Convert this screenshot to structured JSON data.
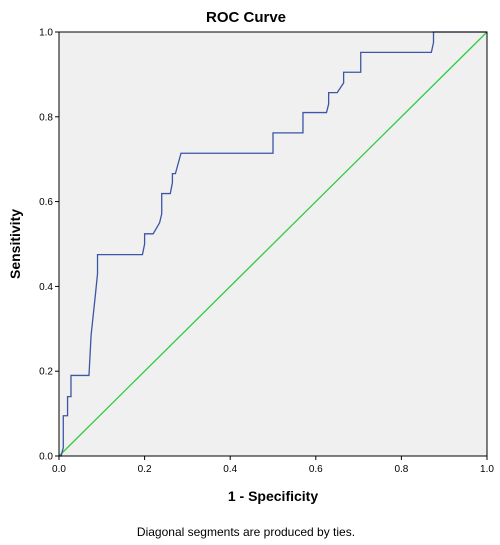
{
  "chart_data": {
    "type": "line",
    "title": "ROC Curve",
    "xlabel": "1 - Specificity",
    "ylabel": "Sensitivity",
    "xlim": [
      0,
      1
    ],
    "ylim": [
      0,
      1
    ],
    "x_ticks": [
      "0.0",
      "0.2",
      "0.4",
      "0.6",
      "0.8",
      "1.0"
    ],
    "y_ticks": [
      "0.0",
      "0.2",
      "0.4",
      "0.6",
      "0.8",
      "1.0"
    ],
    "grid": false,
    "footnote": "Diagonal segments are produced by ties.",
    "colors": {
      "plot_background": "#f0f0f0",
      "roc_curve": "#3d55a5",
      "reference_line": "#2ecc40",
      "axis": "#000000"
    },
    "series": [
      {
        "x": [
          0.0,
          0.005,
          0.01,
          0.01,
          0.02,
          0.02,
          0.028,
          0.028,
          0.035,
          0.035,
          0.07,
          0.075,
          0.085,
          0.09,
          0.09,
          0.195,
          0.2,
          0.2,
          0.22,
          0.235,
          0.24,
          0.24,
          0.26,
          0.265,
          0.265,
          0.272,
          0.285,
          0.5,
          0.5,
          0.57,
          0.57,
          0.625,
          0.63,
          0.63,
          0.65,
          0.665,
          0.665,
          0.705,
          0.705,
          0.87,
          0.875,
          0.875,
          1.0
        ],
        "y": [
          0.0,
          0.0,
          0.02,
          0.095,
          0.095,
          0.14,
          0.14,
          0.19,
          0.19,
          0.19,
          0.19,
          0.285,
          0.38,
          0.43,
          0.475,
          0.475,
          0.5,
          0.524,
          0.524,
          0.55,
          0.571,
          0.619,
          0.619,
          0.645,
          0.666,
          0.666,
          0.714,
          0.714,
          0.762,
          0.762,
          0.81,
          0.81,
          0.83,
          0.857,
          0.857,
          0.88,
          0.905,
          0.905,
          0.952,
          0.952,
          0.975,
          1.0,
          1.0
        ]
      },
      {
        "x": [
          0,
          1
        ],
        "y": [
          0,
          1
        ]
      }
    ]
  }
}
